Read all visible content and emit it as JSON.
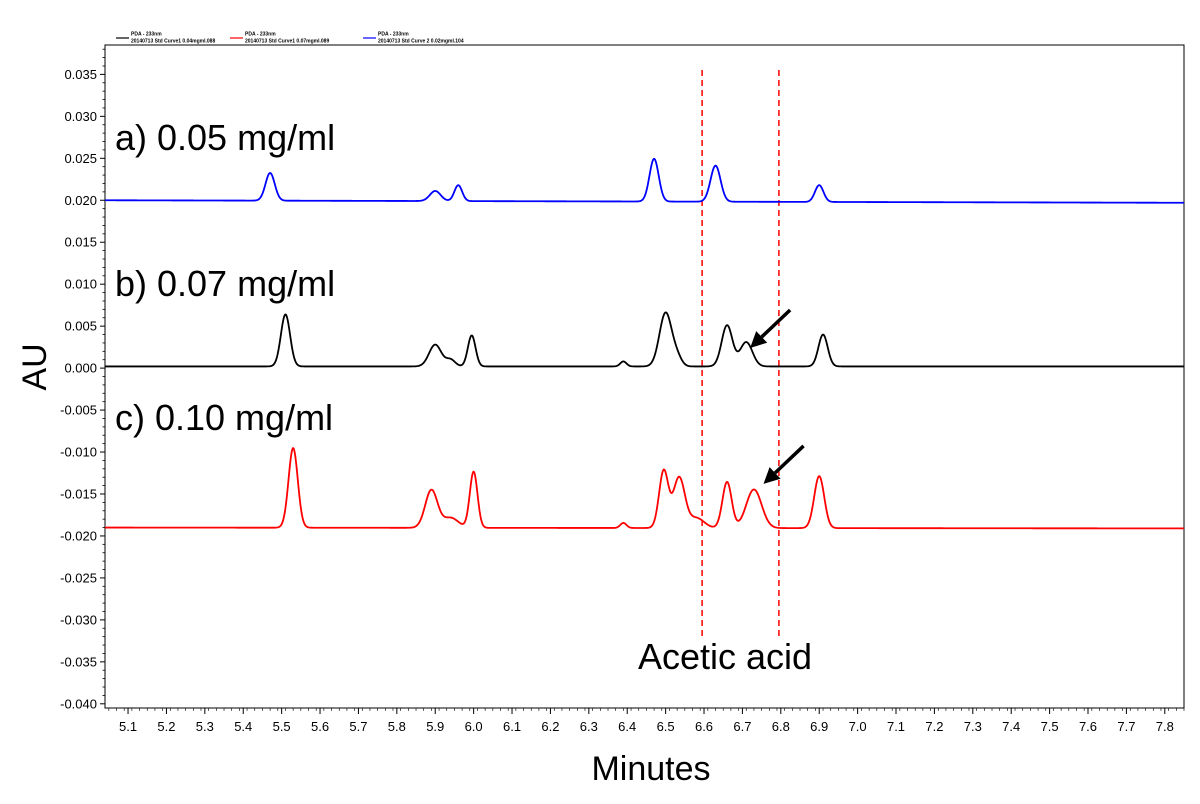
{
  "chart_data": {
    "type": "line",
    "xlabel": "Minutes",
    "ylabel": "AU",
    "xlim": [
      5.04,
      7.85
    ],
    "ylim": [
      -0.0405,
      0.0385
    ],
    "x_ticks": [
      "5.1",
      "5.2",
      "5.3",
      "5.4",
      "5.5",
      "5.6",
      "5.7",
      "5.8",
      "5.9",
      "6.0",
      "6.1",
      "6.2",
      "6.3",
      "6.4",
      "6.5",
      "6.6",
      "6.7",
      "6.8",
      "6.9",
      "7.0",
      "7.1",
      "7.2",
      "7.3",
      "7.4",
      "7.5",
      "7.6",
      "7.7",
      "7.8"
    ],
    "y_ticks": [
      "0.035",
      "0.030",
      "0.025",
      "0.020",
      "0.015",
      "0.010",
      "0.005",
      "0.000",
      "-0.005",
      "-0.010",
      "-0.015",
      "-0.020",
      "-0.025",
      "-0.030",
      "-0.035",
      "-0.040"
    ],
    "legend": {
      "placement": "top-left",
      "entries": [
        {
          "line1": "PDA - 233nm",
          "line2": "20140713 Std Curve1 0.04mgml.088",
          "color": "#000000"
        },
        {
          "line1": "PDA - 233nm",
          "line2": "20140713 Std Curve1 0.07mgml.089",
          "color": "#ff0000"
        },
        {
          "line1": "PDA - 233nm",
          "line2": "20140713 Std Curve 2 0.02mgml.104",
          "color": "#0000ff"
        }
      ]
    },
    "series": [
      {
        "label": "a) 0.05 mg/ml",
        "color": "#0000ff",
        "baseline": 0.02,
        "drift": -0.0003,
        "peaks": [
          {
            "x": 5.47,
            "h": 0.0033,
            "w": 0.012
          },
          {
            "x": 5.9,
            "h": 0.0012,
            "w": 0.014
          },
          {
            "x": 5.96,
            "h": 0.0019,
            "w": 0.01
          },
          {
            "x": 6.47,
            "h": 0.0051,
            "w": 0.012
          },
          {
            "x": 6.63,
            "h": 0.0043,
            "w": 0.013
          },
          {
            "x": 6.9,
            "h": 0.002,
            "w": 0.011
          }
        ]
      },
      {
        "label": "b) 0.07 mg/ml",
        "color": "#000000",
        "baseline": 0.0002,
        "drift": 0.0,
        "peaks": [
          {
            "x": 5.51,
            "h": 0.0062,
            "w": 0.012
          },
          {
            "x": 5.9,
            "h": 0.0026,
            "w": 0.016
          },
          {
            "x": 5.94,
            "h": 0.0008,
            "w": 0.012
          },
          {
            "x": 5.995,
            "h": 0.0037,
            "w": 0.01
          },
          {
            "x": 6.39,
            "h": 0.0006,
            "w": 0.008
          },
          {
            "x": 6.5,
            "h": 0.0064,
            "w": 0.016
          },
          {
            "x": 6.53,
            "h": 0.001,
            "w": 0.012
          },
          {
            "x": 6.66,
            "h": 0.0049,
            "w": 0.014
          },
          {
            "x": 6.71,
            "h": 0.0029,
            "w": 0.016
          },
          {
            "x": 6.91,
            "h": 0.0038,
            "w": 0.012
          }
        ]
      },
      {
        "label": "c) 0.10 mg/ml",
        "color": "#ff0000",
        "baseline": -0.019,
        "drift": -0.0001,
        "peaks": [
          {
            "x": 5.53,
            "h": 0.0095,
            "w": 0.012
          },
          {
            "x": 5.89,
            "h": 0.0045,
            "w": 0.016
          },
          {
            "x": 5.94,
            "h": 0.0012,
            "w": 0.02
          },
          {
            "x": 6.0,
            "h": 0.0067,
            "w": 0.01
          },
          {
            "x": 6.39,
            "h": 0.0006,
            "w": 0.008
          },
          {
            "x": 6.495,
            "h": 0.0068,
            "w": 0.012
          },
          {
            "x": 6.535,
            "h": 0.006,
            "w": 0.015
          },
          {
            "x": 6.58,
            "h": 0.0012,
            "w": 0.02
          },
          {
            "x": 6.66,
            "h": 0.0055,
            "w": 0.012
          },
          {
            "x": 6.73,
            "h": 0.0046,
            "w": 0.02
          },
          {
            "x": 6.9,
            "h": 0.0062,
            "w": 0.013
          }
        ]
      }
    ],
    "reference_lines": [
      {
        "x": 6.595,
        "color": "#ff0000",
        "style": "dashed"
      },
      {
        "x": 6.795,
        "color": "#ff0000",
        "style": "dashed"
      }
    ],
    "annotations": {
      "region_label": "Acetic acid",
      "arrows": [
        {
          "series": "b) 0.07 mg/ml",
          "tip_x": 6.72,
          "tip_y": 0.0024
        },
        {
          "series": "c) 0.10 mg/ml",
          "tip_x": 6.755,
          "tip_y": -0.0138
        }
      ]
    }
  }
}
